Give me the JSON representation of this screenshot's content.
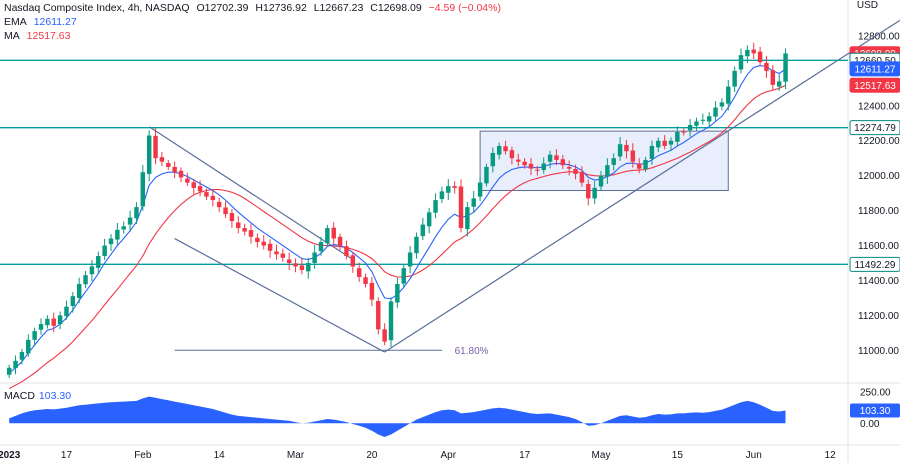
{
  "header": {
    "symbol": "Nasdaq Composite Index, 4h, NASDAQ",
    "open": "O12702.39",
    "high": "H12736.92",
    "low": "L12667.23",
    "close": "C12698.09",
    "change": "−4.59 (−0.04%)",
    "ema_label": "EMA",
    "ema_value": "12611.27",
    "ma_label": "MA",
    "ma_value": "12517.63"
  },
  "currency": "USD",
  "macd_panel": {
    "label": "MACD",
    "value": "103.30",
    "ticks": [
      "250.00",
      "0.00"
    ],
    "badge": "103.30"
  },
  "price_badges": [
    {
      "text": "12698.09",
      "value": 12698.09,
      "color": "#f23645"
    },
    {
      "text": "12660.50",
      "value": 12660.5,
      "color": "#00897b",
      "outline": true
    },
    {
      "text": "12611.27",
      "value": 12611.27,
      "color": "#2962ff"
    },
    {
      "text": "12517.63",
      "value": 12517.63,
      "color": "#f23645"
    },
    {
      "text": "12274.79",
      "value": 12274.79,
      "color": "#00897b",
      "outline": true
    },
    {
      "text": "11492.29",
      "value": 11492.29,
      "color": "#00897b",
      "outline": true
    }
  ],
  "annotations": {
    "fib_label": "61.80%"
  },
  "colors": {
    "up": "#089981",
    "down": "#f23645",
    "ema": "#2962ff",
    "ma": "#f23645",
    "level": "#00a0a0",
    "trend": "#5b6f99",
    "box_fill": "#e8eefc",
    "macd": "#2962ff"
  },
  "chart_data": {
    "type": "candlestick",
    "title": "Nasdaq Composite Index, 4h, NASDAQ",
    "y_ticks": [
      "12800.00",
      "12600.00",
      "12400.00",
      "12200.00",
      "12000.00",
      "11800.00",
      "11600.00",
      "11400.00",
      "11200.00",
      "11000.00"
    ],
    "y_tick_values": [
      12800,
      12600,
      12400,
      12200,
      12000,
      11800,
      11600,
      11400,
      11200,
      11000
    ],
    "ylim": [
      10830,
      12960
    ],
    "x_labels": [
      "2023",
      "17",
      "Feb",
      "14",
      "Mar",
      "20",
      "Apr",
      "17",
      "May",
      "15",
      "Jun",
      "12"
    ],
    "x_label_index": [
      0,
      9,
      21,
      33,
      45,
      57,
      69,
      81,
      93,
      105,
      117,
      129
    ],
    "x_count": 132,
    "horizontal_levels": [
      12660.5,
      12274.79,
      11492.29
    ],
    "close": [
      10900,
      10940,
      10990,
      11060,
      11110,
      11150,
      11180,
      11140,
      11200,
      11250,
      11310,
      11380,
      11430,
      11480,
      11540,
      11600,
      11640,
      11690,
      11710,
      11760,
      11820,
      12020,
      12230,
      12100,
      12080,
      12050,
      12020,
      11990,
      11960,
      11930,
      11910,
      11880,
      11860,
      11820,
      11780,
      11740,
      11700,
      11680,
      11650,
      11620,
      11600,
      11570,
      11550,
      11530,
      11500,
      11480,
      11460,
      11500,
      11560,
      11620,
      11700,
      11640,
      11600,
      11540,
      11480,
      11420,
      11380,
      11290,
      11120,
      11050,
      11280,
      11380,
      11470,
      11560,
      11650,
      11720,
      11790,
      11860,
      11910,
      11940,
      11930,
      11700,
      11820,
      11870,
      11960,
      12050,
      12130,
      12170,
      12140,
      12100,
      12080,
      12060,
      12040,
      12030,
      12070,
      12120,
      12090,
      12060,
      12040,
      12010,
      11960,
      11870,
      11930,
      12000,
      12060,
      12100,
      12180,
      12140,
      12080,
      12040,
      12090,
      12170,
      12200,
      12170,
      12200,
      12250,
      12250,
      12290,
      12310,
      12320,
      12340,
      12390,
      12420,
      12510,
      12600,
      12690,
      12720,
      12700,
      12650,
      12600,
      12520,
      12540,
      12700
    ],
    "ema": [
      10870,
      10900,
      10935,
      10985,
      11030,
      11075,
      11115,
      11125,
      11150,
      11185,
      11230,
      11285,
      11335,
      11385,
      11440,
      11500,
      11550,
      11600,
      11640,
      11685,
      11735,
      11830,
      11945,
      11990,
      12010,
      12020,
      12020,
      12010,
      11995,
      11975,
      11955,
      11935,
      11915,
      11890,
      11860,
      11825,
      11790,
      11760,
      11730,
      11700,
      11675,
      11650,
      11625,
      11600,
      11575,
      11550,
      11525,
      11520,
      11530,
      11555,
      11595,
      11605,
      11600,
      11585,
      11560,
      11530,
      11500,
      11450,
      11370,
      11300,
      11295,
      11320,
      11360,
      11410,
      11470,
      11530,
      11590,
      11650,
      11705,
      11750,
      11780,
      11760,
      11770,
      11790,
      11830,
      11880,
      11935,
      11985,
      12015,
      12035,
      12045,
      12050,
      12048,
      12045,
      12050,
      12065,
      12070,
      12068,
      12062,
      12050,
      12030,
      11990,
      11975,
      11980,
      11995,
      12015,
      12050,
      12070,
      12072,
      12065,
      12070,
      12090,
      12115,
      12130,
      12145,
      12170,
      12190,
      12215,
      12240,
      12260,
      12280,
      12310,
      12340,
      12390,
      12450,
      12520,
      12580,
      12620,
      12630,
      12625,
      12600,
      12585,
      12611
    ],
    "ma": [
      10780,
      10800,
      10820,
      10845,
      10870,
      10900,
      10930,
      10955,
      10985,
      11015,
      11050,
      11090,
      11130,
      11170,
      11215,
      11260,
      11305,
      11350,
      11395,
      11440,
      11485,
      11540,
      11610,
      11665,
      11715,
      11760,
      11800,
      11835,
      11865,
      11890,
      11905,
      11915,
      11920,
      11920,
      11915,
      11905,
      11890,
      11870,
      11845,
      11820,
      11795,
      11770,
      11745,
      11720,
      11695,
      11670,
      11645,
      11625,
      11610,
      11600,
      11600,
      11598,
      11594,
      11588,
      11578,
      11565,
      11548,
      11525,
      11490,
      11450,
      11430,
      11420,
      11420,
      11425,
      11440,
      11460,
      11485,
      11515,
      11550,
      11585,
      11620,
      11640,
      11665,
      11695,
      11730,
      11770,
      11810,
      11850,
      11885,
      11915,
      11940,
      11960,
      11975,
      11985,
      11995,
      12005,
      12012,
      12018,
      12022,
      12022,
      12018,
      12005,
      12000,
      11998,
      12000,
      12005,
      12015,
      12025,
      12030,
      12032,
      12035,
      12045,
      12058,
      12070,
      12085,
      12100,
      12118,
      12135,
      12155,
      12175,
      12195,
      12218,
      12245,
      12280,
      12320,
      12365,
      12405,
      12440,
      12465,
      12480,
      12490,
      12500,
      12517
    ],
    "macd": [
      40,
      60,
      80,
      95,
      105,
      110,
      115,
      112,
      118,
      125,
      135,
      145,
      150,
      155,
      160,
      165,
      170,
      172,
      175,
      178,
      180,
      200,
      215,
      205,
      195,
      185,
      175,
      165,
      155,
      145,
      135,
      125,
      115,
      100,
      85,
      70,
      60,
      55,
      50,
      45,
      40,
      35,
      30,
      25,
      20,
      10,
      0,
      5,
      15,
      25,
      35,
      30,
      20,
      10,
      -5,
      -20,
      -35,
      -60,
      -90,
      -110,
      -90,
      -60,
      -30,
      0,
      30,
      50,
      70,
      90,
      105,
      110,
      105,
      80,
      85,
      90,
      100,
      110,
      120,
      125,
      120,
      110,
      100,
      90,
      80,
      75,
      78,
      80,
      70,
      60,
      50,
      35,
      10,
      -20,
      -15,
      0,
      20,
      40,
      60,
      65,
      55,
      45,
      50,
      65,
      75,
      70,
      72,
      80,
      80,
      85,
      88,
      85,
      90,
      100,
      110,
      130,
      150,
      170,
      180,
      170,
      150,
      125,
      100,
      95,
      103.3
    ],
    "macd_ylim": [
      -150,
      300
    ]
  }
}
